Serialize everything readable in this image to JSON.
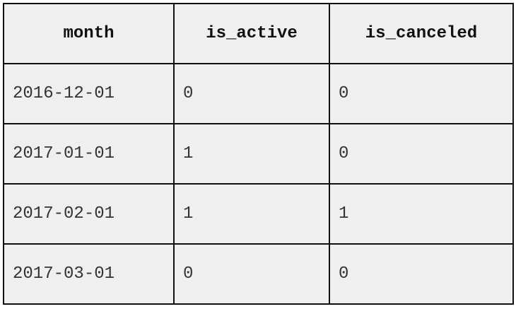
{
  "table": {
    "headers": [
      "month",
      "is_active",
      "is_canceled"
    ],
    "rows": [
      [
        "2016-12-01",
        "0",
        "0"
      ],
      [
        "2017-01-01",
        "1",
        "0"
      ],
      [
        "2017-02-01",
        "1",
        "1"
      ],
      [
        "2017-03-01",
        "0",
        "0"
      ]
    ]
  }
}
